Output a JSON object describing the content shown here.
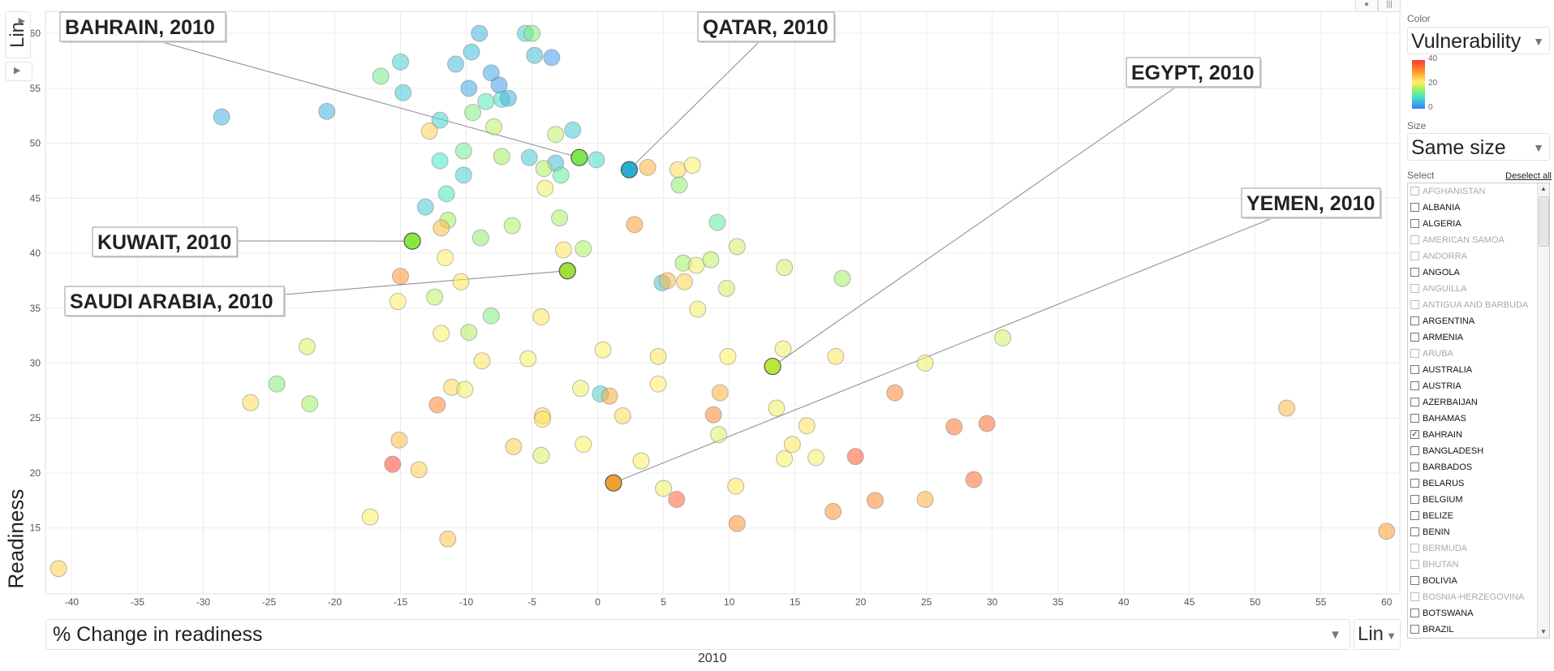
{
  "chart_data": {
    "type": "scatter",
    "title": "",
    "xlabel": "% Change in readiness",
    "ylabel": "Readiness",
    "year": "2010",
    "x_scale": "Lin",
    "y_scale": "Lin",
    "xlim": [
      -42,
      61
    ],
    "ylim": [
      9,
      62
    ],
    "x_ticks": [
      -40,
      -35,
      -30,
      -25,
      -20,
      -15,
      -10,
      -5,
      0,
      5,
      10,
      15,
      20,
      25,
      30,
      35,
      40,
      45,
      50,
      55,
      60
    ],
    "y_ticks": [
      15,
      20,
      25,
      30,
      35,
      40,
      45,
      50,
      55,
      60
    ],
    "grid": true,
    "color_by": "Vulnerability",
    "color_range": [
      0,
      40
    ],
    "points": [
      {
        "x": -9,
        "y": 60.0,
        "v": 5
      },
      {
        "x": -5.5,
        "y": 60.0,
        "v": 8
      },
      {
        "x": -5.0,
        "y": 60.0,
        "v": 14
      },
      {
        "x": -4.8,
        "y": 58.0,
        "v": 6
      },
      {
        "x": -3.5,
        "y": 57.8,
        "v": 3
      },
      {
        "x": -10.8,
        "y": 57.2,
        "v": 6
      },
      {
        "x": -9.6,
        "y": 58.3,
        "v": 6
      },
      {
        "x": -15,
        "y": 57.4,
        "v": 8
      },
      {
        "x": -16.5,
        "y": 56.1,
        "v": 13
      },
      {
        "x": -8.1,
        "y": 56.4,
        "v": 4
      },
      {
        "x": -7.5,
        "y": 55.3,
        "v": 3
      },
      {
        "x": -9.8,
        "y": 55.0,
        "v": 4
      },
      {
        "x": -14.8,
        "y": 54.6,
        "v": 7
      },
      {
        "x": -8.5,
        "y": 53.8,
        "v": 11
      },
      {
        "x": -7.3,
        "y": 54.0,
        "v": 9
      },
      {
        "x": -6.8,
        "y": 54.1,
        "v": 5
      },
      {
        "x": -28.6,
        "y": 52.4,
        "v": 5
      },
      {
        "x": -20.6,
        "y": 52.9,
        "v": 5
      },
      {
        "x": -9.5,
        "y": 52.8,
        "v": 14
      },
      {
        "x": -12,
        "y": 52.1,
        "v": 8
      },
      {
        "x": -12.8,
        "y": 51.1,
        "v": 25
      },
      {
        "x": -7.9,
        "y": 51.5,
        "v": 18
      },
      {
        "x": -1.9,
        "y": 51.2,
        "v": 7
      },
      {
        "x": -3.2,
        "y": 50.8,
        "v": 18
      },
      {
        "x": -10.2,
        "y": 49.3,
        "v": 13
      },
      {
        "x": -12,
        "y": 48.4,
        "v": 10
      },
      {
        "x": -7.3,
        "y": 48.8,
        "v": 16
      },
      {
        "x": -5.2,
        "y": 48.7,
        "v": 7
      },
      {
        "x": -1.4,
        "y": 48.7,
        "v": 20
      },
      {
        "x": -0.1,
        "y": 48.5,
        "v": 9
      },
      {
        "x": -3.2,
        "y": 48.2,
        "v": 6
      },
      {
        "x": -4.1,
        "y": 47.7,
        "v": 17
      },
      {
        "x": -2.8,
        "y": 47.1,
        "v": 12
      },
      {
        "x": 2.4,
        "y": 47.6,
        "v": 2
      },
      {
        "x": 3.8,
        "y": 47.8,
        "v": 28
      },
      {
        "x": 6.1,
        "y": 47.6,
        "v": 24
      },
      {
        "x": 7.2,
        "y": 48.0,
        "v": 22
      },
      {
        "x": -10.2,
        "y": 47.1,
        "v": 8
      },
      {
        "x": -4.0,
        "y": 45.9,
        "v": 21
      },
      {
        "x": 6.2,
        "y": 46.2,
        "v": 15
      },
      {
        "x": -11.5,
        "y": 45.4,
        "v": 10
      },
      {
        "x": -13.1,
        "y": 44.2,
        "v": 7
      },
      {
        "x": -11.4,
        "y": 43.0,
        "v": 16
      },
      {
        "x": -2.9,
        "y": 43.2,
        "v": 17
      },
      {
        "x": 9.1,
        "y": 42.8,
        "v": 12
      },
      {
        "x": -11.9,
        "y": 42.3,
        "v": 27
      },
      {
        "x": -6.5,
        "y": 42.5,
        "v": 17
      },
      {
        "x": 2.8,
        "y": 42.6,
        "v": 30
      },
      {
        "x": -8.9,
        "y": 41.4,
        "v": 15
      },
      {
        "x": -14.1,
        "y": 41.1,
        "v": 20
      },
      {
        "x": -2.6,
        "y": 40.3,
        "v": 23
      },
      {
        "x": -1.1,
        "y": 40.4,
        "v": 17
      },
      {
        "x": 10.6,
        "y": 40.6,
        "v": 19
      },
      {
        "x": -11.6,
        "y": 39.6,
        "v": 22
      },
      {
        "x": 6.5,
        "y": 39.1,
        "v": 16
      },
      {
        "x": 7.5,
        "y": 38.9,
        "v": 21
      },
      {
        "x": 8.6,
        "y": 39.4,
        "v": 18
      },
      {
        "x": 14.2,
        "y": 38.7,
        "v": 19
      },
      {
        "x": -15,
        "y": 37.9,
        "v": 31
      },
      {
        "x": -2.3,
        "y": 38.4,
        "v": 20
      },
      {
        "x": -10.4,
        "y": 37.4,
        "v": 23
      },
      {
        "x": 4.9,
        "y": 37.3,
        "v": 6
      },
      {
        "x": 5.3,
        "y": 37.5,
        "v": 27
      },
      {
        "x": 6.6,
        "y": 37.4,
        "v": 25
      },
      {
        "x": 9.8,
        "y": 36.8,
        "v": 19
      },
      {
        "x": 18.6,
        "y": 37.7,
        "v": 16
      },
      {
        "x": -12.4,
        "y": 36.0,
        "v": 18
      },
      {
        "x": -15.2,
        "y": 35.6,
        "v": 22
      },
      {
        "x": 7.6,
        "y": 34.9,
        "v": 21
      },
      {
        "x": -8.1,
        "y": 34.3,
        "v": 14
      },
      {
        "x": -4.3,
        "y": 34.2,
        "v": 23
      },
      {
        "x": -9.8,
        "y": 32.8,
        "v": 17
      },
      {
        "x": -11.9,
        "y": 32.7,
        "v": 22
      },
      {
        "x": -22.1,
        "y": 31.5,
        "v": 20
      },
      {
        "x": 0.4,
        "y": 31.2,
        "v": 22
      },
      {
        "x": 14.1,
        "y": 31.3,
        "v": 21
      },
      {
        "x": 30.8,
        "y": 32.3,
        "v": 19
      },
      {
        "x": -8.8,
        "y": 30.2,
        "v": 23
      },
      {
        "x": -5.3,
        "y": 30.4,
        "v": 22
      },
      {
        "x": 4.6,
        "y": 30.6,
        "v": 23
      },
      {
        "x": 9.9,
        "y": 30.6,
        "v": 22
      },
      {
        "x": 13.3,
        "y": 29.7,
        "v": 21
      },
      {
        "x": 18.1,
        "y": 30.6,
        "v": 23
      },
      {
        "x": 24.9,
        "y": 30.0,
        "v": 21
      },
      {
        "x": -24.4,
        "y": 28.1,
        "v": 14
      },
      {
        "x": -11.1,
        "y": 27.8,
        "v": 24
      },
      {
        "x": -10.1,
        "y": 27.6,
        "v": 21
      },
      {
        "x": -1.3,
        "y": 27.7,
        "v": 21
      },
      {
        "x": 0.2,
        "y": 27.2,
        "v": 8
      },
      {
        "x": 0.9,
        "y": 27.0,
        "v": 29
      },
      {
        "x": 4.6,
        "y": 28.1,
        "v": 22
      },
      {
        "x": 9.3,
        "y": 27.3,
        "v": 28
      },
      {
        "x": 22.6,
        "y": 27.3,
        "v": 32
      },
      {
        "x": -26.4,
        "y": 26.4,
        "v": 24
      },
      {
        "x": -21.9,
        "y": 26.3,
        "v": 16
      },
      {
        "x": -12.2,
        "y": 26.2,
        "v": 32
      },
      {
        "x": -4.2,
        "y": 25.2,
        "v": 24
      },
      {
        "x": 1.9,
        "y": 25.2,
        "v": 24
      },
      {
        "x": 8.8,
        "y": 25.3,
        "v": 32
      },
      {
        "x": 13.6,
        "y": 25.9,
        "v": 21
      },
      {
        "x": 52.4,
        "y": 25.9,
        "v": 27
      },
      {
        "x": 15.9,
        "y": 24.3,
        "v": 23
      },
      {
        "x": 27.1,
        "y": 24.2,
        "v": 34
      },
      {
        "x": 29.6,
        "y": 24.5,
        "v": 35
      },
      {
        "x": -4.2,
        "y": 24.9,
        "v": 23
      },
      {
        "x": 9.2,
        "y": 23.5,
        "v": 20
      },
      {
        "x": -15.1,
        "y": 23.0,
        "v": 27
      },
      {
        "x": -1.1,
        "y": 22.6,
        "v": 22
      },
      {
        "x": -6.4,
        "y": 22.4,
        "v": 25
      },
      {
        "x": 14.8,
        "y": 22.6,
        "v": 23
      },
      {
        "x": -4.3,
        "y": 21.6,
        "v": 20
      },
      {
        "x": 3.3,
        "y": 21.1,
        "v": 22
      },
      {
        "x": 14.2,
        "y": 21.3,
        "v": 22
      },
      {
        "x": 16.6,
        "y": 21.4,
        "v": 21
      },
      {
        "x": 19.6,
        "y": 21.5,
        "v": 37
      },
      {
        "x": -15.6,
        "y": 20.8,
        "v": 39
      },
      {
        "x": -13.6,
        "y": 20.3,
        "v": 25
      },
      {
        "x": 1.2,
        "y": 19.1,
        "v": 30
      },
      {
        "x": 28.6,
        "y": 19.4,
        "v": 35
      },
      {
        "x": 5.0,
        "y": 18.6,
        "v": 21
      },
      {
        "x": 10.5,
        "y": 18.8,
        "v": 23
      },
      {
        "x": 6.0,
        "y": 17.6,
        "v": 36
      },
      {
        "x": 21.1,
        "y": 17.5,
        "v": 32
      },
      {
        "x": 24.9,
        "y": 17.6,
        "v": 28
      },
      {
        "x": -17.3,
        "y": 16.0,
        "v": 22
      },
      {
        "x": 17.9,
        "y": 16.5,
        "v": 31
      },
      {
        "x": 10.6,
        "y": 15.4,
        "v": 31
      },
      {
        "x": 60.0,
        "y": 14.7,
        "v": 30
      },
      {
        "x": -11.4,
        "y": 14.0,
        "v": 26
      },
      {
        "x": -41.0,
        "y": 11.3,
        "v": 25
      }
    ],
    "highlighted": [
      {
        "label": "BAHRAIN, 2010",
        "x": -1.4,
        "y": 48.7,
        "color": "#7de84e"
      },
      {
        "label": "QATAR, 2010",
        "x": 2.4,
        "y": 47.6,
        "color": "#27aed0"
      },
      {
        "label": "EGYPT, 2010",
        "x": 13.3,
        "y": 29.7,
        "color": "#b8e838"
      },
      {
        "label": "KUWAIT, 2010",
        "x": -14.1,
        "y": 41.1,
        "color": "#88e83e"
      },
      {
        "label": "SAUDI ARABIA, 2010",
        "x": -2.3,
        "y": 38.4,
        "color": "#a0e038"
      },
      {
        "label": "YEMEN, 2010",
        "x": 1.2,
        "y": 19.1,
        "color": "#f0a030"
      }
    ]
  },
  "controls": {
    "y_scale_label": "Lin",
    "x_scale_label": "Lin",
    "x_metric": "% Change in readiness",
    "y_metric": "Readiness",
    "year_label": "2010"
  },
  "side_panel": {
    "color_label": "Color",
    "color_value": "Vulnerability",
    "legend_ticks": [
      "40",
      "20",
      "0"
    ],
    "size_label": "Size",
    "size_value": "Same size",
    "select_label": "Select",
    "deselect_label": "Deselect all",
    "countries": [
      {
        "name": "AFGHANISTAN",
        "available": false,
        "checked": false
      },
      {
        "name": "ALBANIA",
        "available": true,
        "checked": false
      },
      {
        "name": "ALGERIA",
        "available": true,
        "checked": false
      },
      {
        "name": "AMERICAN SAMOA",
        "available": false,
        "checked": false
      },
      {
        "name": "ANDORRA",
        "available": false,
        "checked": false
      },
      {
        "name": "ANGOLA",
        "available": true,
        "checked": false
      },
      {
        "name": "ANGUILLA",
        "available": false,
        "checked": false
      },
      {
        "name": "ANTIGUA AND BARBUDA",
        "available": false,
        "checked": false
      },
      {
        "name": "ARGENTINA",
        "available": true,
        "checked": false
      },
      {
        "name": "ARMENIA",
        "available": true,
        "checked": false
      },
      {
        "name": "ARUBA",
        "available": false,
        "checked": false
      },
      {
        "name": "AUSTRALIA",
        "available": true,
        "checked": false
      },
      {
        "name": "AUSTRIA",
        "available": true,
        "checked": false
      },
      {
        "name": "AZERBAIJAN",
        "available": true,
        "checked": false
      },
      {
        "name": "BAHAMAS",
        "available": true,
        "checked": false
      },
      {
        "name": "BAHRAIN",
        "available": true,
        "checked": true
      },
      {
        "name": "BANGLADESH",
        "available": true,
        "checked": false
      },
      {
        "name": "BARBADOS",
        "available": true,
        "checked": false
      },
      {
        "name": "BELARUS",
        "available": true,
        "checked": false
      },
      {
        "name": "BELGIUM",
        "available": true,
        "checked": false
      },
      {
        "name": "BELIZE",
        "available": true,
        "checked": false
      },
      {
        "name": "BENIN",
        "available": true,
        "checked": false
      },
      {
        "name": "BERMUDA",
        "available": false,
        "checked": false
      },
      {
        "name": "BHUTAN",
        "available": false,
        "checked": false
      },
      {
        "name": "BOLIVIA",
        "available": true,
        "checked": false
      },
      {
        "name": "BOSNIA-HERZEGOVINA",
        "available": false,
        "checked": false
      },
      {
        "name": "BOTSWANA",
        "available": true,
        "checked": false
      },
      {
        "name": "BRAZIL",
        "available": true,
        "checked": false
      }
    ]
  }
}
